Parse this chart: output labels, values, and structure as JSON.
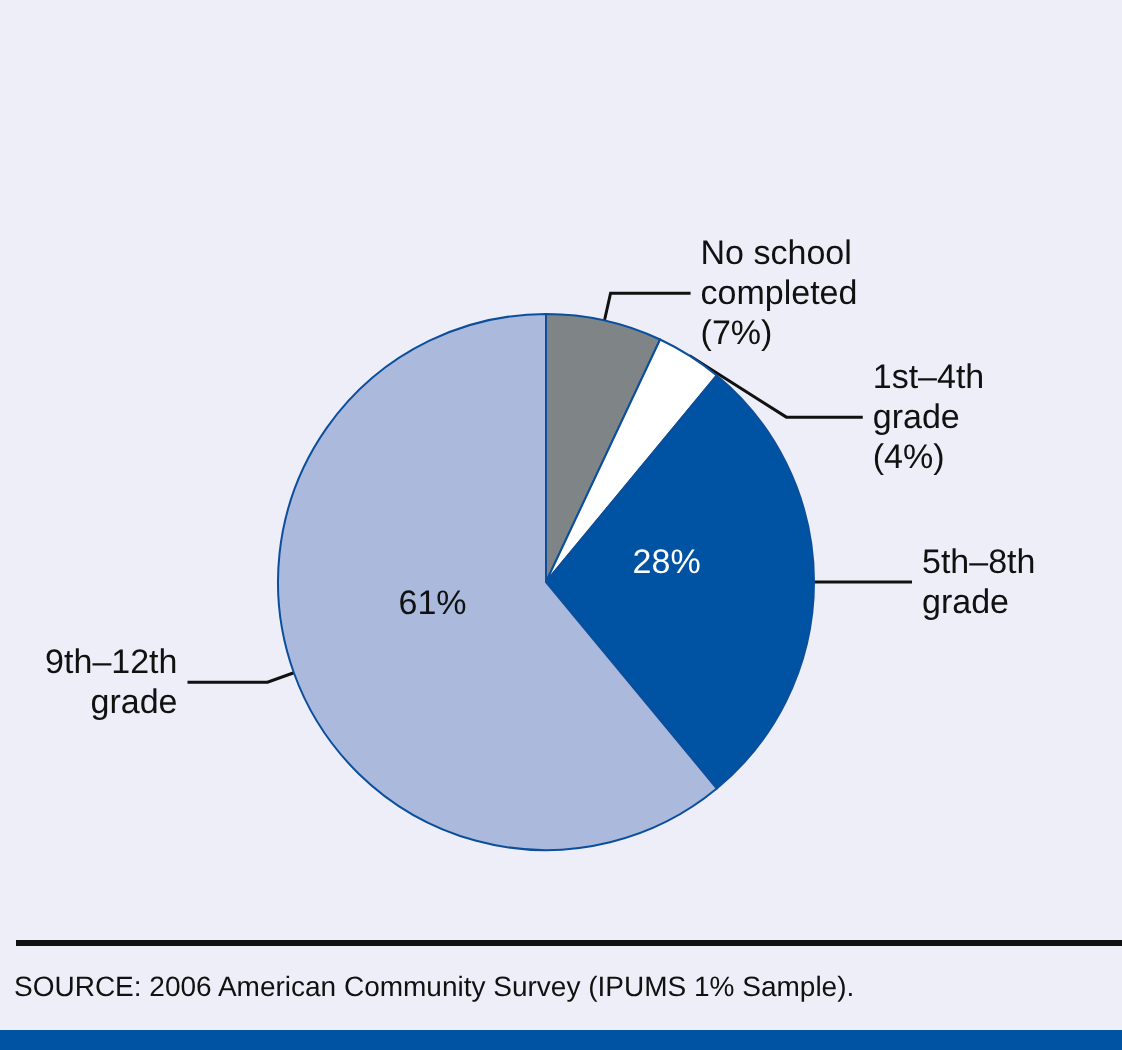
{
  "chart_data": {
    "type": "pie",
    "categories": [
      "No school\ncompleted",
      "1st–4th\ngrade",
      "5th–8th\ngrade",
      "9th–12th\ngrade"
    ],
    "values": [
      7,
      4,
      28,
      61
    ],
    "colors": [
      "#7f8587",
      "#ffffff",
      "#0052a3",
      "#abb9dd"
    ],
    "value_labels": [
      "(7%)",
      "(4%)",
      "28%",
      "61%"
    ],
    "annotations": [
      "SOURCE: 2006 American Community Survey (IPUMS 1% Sample)."
    ],
    "legend": false
  }
}
